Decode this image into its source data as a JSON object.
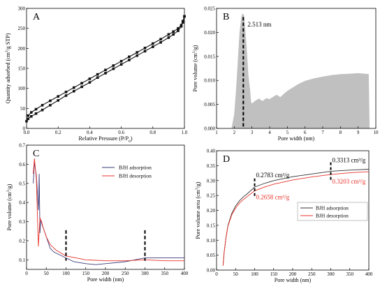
{
  "chart_data": [
    {
      "panel": "A",
      "type": "line",
      "xlabel": "Relative Pressure (P/P0)",
      "ylabel": "Quantity adsorbed (cm3/g STP)",
      "xlim": [
        0,
        1.0
      ],
      "ylim": [
        0,
        300
      ],
      "xticks": [
        "0.0",
        "0.2",
        "0.4",
        "0.6",
        "0.8",
        "1.0"
      ],
      "yticks": [
        "0",
        "50",
        "100",
        "150",
        "200",
        "250",
        "300"
      ],
      "grid": false,
      "marker": "square",
      "series": [
        {
          "values_desc": "adsorption",
          "x": [
            0.0,
            0.01,
            0.03,
            0.06,
            0.1,
            0.15,
            0.2,
            0.25,
            0.3,
            0.35,
            0.4,
            0.45,
            0.5,
            0.55,
            0.6,
            0.65,
            0.7,
            0.75,
            0.8,
            0.85,
            0.9,
            0.93,
            0.96,
            0.98,
            0.99,
            1.0
          ],
          "y": [
            18,
            24,
            30,
            37,
            46,
            58,
            70,
            82,
            93,
            104,
            115,
            127,
            138,
            149,
            160,
            171,
            182,
            193,
            204,
            215,
            227,
            235,
            244,
            255,
            265,
            280
          ]
        },
        {
          "values_desc": "desorption",
          "x": [
            1.0,
            0.99,
            0.98,
            0.96,
            0.93,
            0.9,
            0.85,
            0.8,
            0.75,
            0.7,
            0.65,
            0.6,
            0.55,
            0.5,
            0.45,
            0.4,
            0.35,
            0.3,
            0.25,
            0.2,
            0.15,
            0.1,
            0.06,
            0.03,
            0.01
          ],
          "y": [
            280,
            268,
            258,
            250,
            242,
            235,
            223,
            212,
            201,
            190,
            179,
            168,
            157,
            146,
            135,
            124,
            113,
            102,
            91,
            80,
            69,
            58,
            48,
            40,
            32
          ]
        }
      ]
    },
    {
      "panel": "B",
      "type": "area",
      "xlabel": "Pore width (nm)",
      "ylabel": "Pore volume (cm3/g)",
      "xlim": [
        1.0,
        10.0
      ],
      "ylim": [
        0,
        0.025
      ],
      "xticks": [
        "1",
        "2",
        "3",
        "4",
        "5",
        "6",
        "7",
        "8",
        "9",
        "10"
      ],
      "yticks": [
        "0.000",
        "0.005",
        "0.010",
        "0.015",
        "0.020",
        "0.025"
      ],
      "annotation": "2.513 nm",
      "peak_x": 2.513,
      "fill": "#c0c0c0",
      "x": [
        1.85,
        2.0,
        2.1,
        2.2,
        2.3,
        2.4,
        2.45,
        2.5,
        2.55,
        2.6,
        2.7,
        2.8,
        2.9,
        2.95,
        3.0,
        3.2,
        3.4,
        3.6,
        3.8,
        4.0,
        4.2,
        4.4,
        4.6,
        4.8,
        5.0,
        5.3,
        5.6,
        6.0,
        6.5,
        7.0,
        7.5,
        8.0,
        8.5,
        9.0,
        9.4,
        9.6,
        9.65
      ],
      "y": [
        0,
        0.003,
        0.008,
        0.014,
        0.02,
        0.0232,
        0.0238,
        0.0239,
        0.0236,
        0.0215,
        0.017,
        0.011,
        0.008,
        0.0055,
        0.0052,
        0.0058,
        0.0062,
        0.0057,
        0.0063,
        0.0061,
        0.0066,
        0.007,
        0.0065,
        0.0072,
        0.0078,
        0.0085,
        0.0092,
        0.0099,
        0.0104,
        0.0108,
        0.0111,
        0.0113,
        0.0114,
        0.0115,
        0.0114,
        0.0113,
        0
      ]
    },
    {
      "panel": "C",
      "type": "line",
      "xlabel": "Pore width (nm)",
      "ylabel": "Pore volume (cm3/g)",
      "xlim": [
        0,
        400
      ],
      "ylim": [
        0.05,
        0.7
      ],
      "xticks": [
        "0",
        "50",
        "100",
        "150",
        "200",
        "250",
        "300",
        "350",
        "400"
      ],
      "yticks": [
        "0.1",
        "0.2",
        "0.3",
        "0.4",
        "0.5",
        "0.6",
        "0.7"
      ],
      "dashed_markers_x": [
        100,
        300
      ],
      "legend": "top-right",
      "series": [
        {
          "name": "BJH adsorption",
          "color": "#3a3a7a",
          "x": [
            17,
            20,
            25,
            30,
            32,
            34,
            36,
            40,
            50,
            60,
            70,
            80,
            100,
            120,
            150,
            175,
            200,
            250,
            300,
            350,
            400
          ],
          "y": [
            0.5,
            0.61,
            0.54,
            0.36,
            0.55,
            0.24,
            0.31,
            0.28,
            0.22,
            0.16,
            0.14,
            0.13,
            0.11,
            0.09,
            0.08,
            0.075,
            0.08,
            0.09,
            0.11,
            0.11,
            0.11
          ]
        },
        {
          "name": "BJH desorption",
          "color": "#e8322a",
          "x": [
            17,
            20,
            25,
            28,
            30,
            34,
            38,
            42,
            50,
            60,
            75,
            100,
            150,
            200,
            250,
            300,
            350,
            400
          ],
          "y": [
            0.55,
            0.63,
            0.52,
            0.3,
            0.17,
            0.32,
            0.3,
            0.27,
            0.22,
            0.18,
            0.15,
            0.12,
            0.1,
            0.095,
            0.095,
            0.1,
            0.095,
            0.095
          ]
        }
      ]
    },
    {
      "panel": "D",
      "type": "line",
      "xlabel": "Pore width (nm)",
      "ylabel": "Pore volume area (cm3/g)",
      "xlim": [
        0,
        400
      ],
      "ylim": [
        0,
        0.4
      ],
      "xticks": [
        "0",
        "50",
        "100",
        "150",
        "200",
        "250",
        "300",
        "350",
        "400"
      ],
      "yticks": [
        "0.00",
        "0.05",
        "0.10",
        "0.15",
        "0.20",
        "0.25",
        "0.30",
        "0.35",
        "0.40"
      ],
      "legend": "center-right",
      "annotations": [
        {
          "text": "0.2783 cm³/g",
          "x": 100,
          "y": 0.2783,
          "color": "#000000"
        },
        {
          "text": "0.3313 cm³/g",
          "x": 300,
          "y": 0.3313,
          "color": "#000000"
        },
        {
          "text": "0.2658 cm³/g",
          "x": 100,
          "y": 0.2658,
          "color": "#e8322a"
        },
        {
          "text": "0.3203 cm³/g",
          "x": 300,
          "y": 0.3203,
          "color": "#e8322a"
        }
      ],
      "series": [
        {
          "name": "BJH adsorption",
          "color": "#333333",
          "x": [
            17,
            20,
            25,
            30,
            40,
            50,
            60,
            70,
            80,
            100,
            125,
            150,
            200,
            250,
            300,
            350,
            400
          ],
          "y": [
            0.015,
            0.06,
            0.11,
            0.15,
            0.19,
            0.215,
            0.232,
            0.245,
            0.255,
            0.2783,
            0.29,
            0.3,
            0.313,
            0.322,
            0.3313,
            0.335,
            0.338
          ]
        },
        {
          "name": "BJH desorption",
          "color": "#e8322a",
          "x": [
            17,
            20,
            25,
            30,
            40,
            50,
            60,
            70,
            80,
            100,
            125,
            150,
            200,
            250,
            300,
            350,
            400
          ],
          "y": [
            0.015,
            0.06,
            0.11,
            0.148,
            0.185,
            0.208,
            0.224,
            0.236,
            0.246,
            0.2658,
            0.278,
            0.288,
            0.302,
            0.312,
            0.3203,
            0.326,
            0.33
          ]
        }
      ]
    }
  ]
}
